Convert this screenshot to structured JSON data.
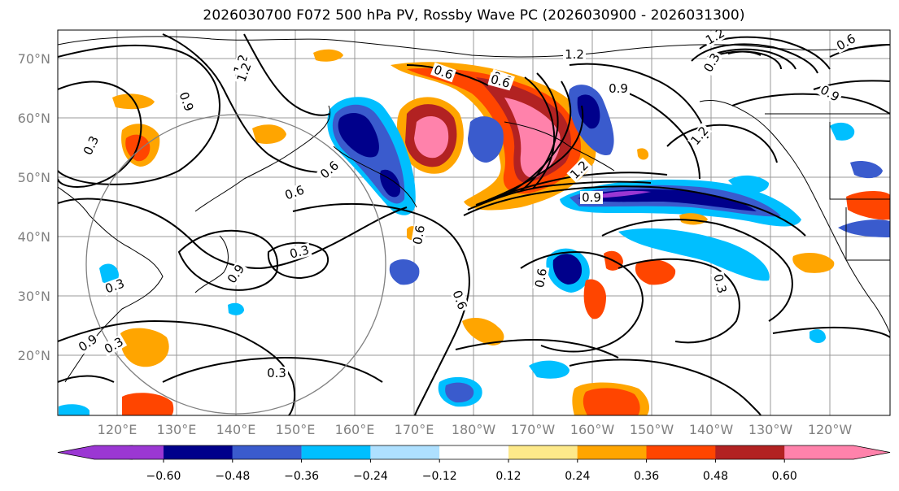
{
  "title": "2026030700 F072 500 hPa PV, Rossby Wave PC (2026030900 - 2026031300)",
  "map": {
    "lat_ticks": [
      "70°N",
      "60°N",
      "50°N",
      "40°N",
      "30°N",
      "20°N"
    ],
    "lon_ticks": [
      "120°E",
      "130°E",
      "140°E",
      "150°E",
      "160°E",
      "170°E",
      "180°W",
      "170°W",
      "160°W",
      "150°W",
      "140°W",
      "130°W",
      "120°W"
    ],
    "contour_labels": [
      "1.2",
      "0.9",
      "0.3",
      "0.6",
      "0.3",
      "0.3",
      "0.3",
      "0.3",
      "0.9",
      "0.6",
      "1.2",
      "0.9",
      "0.6",
      "0.6",
      "0.3",
      "0.6",
      "0.9",
      "1.2",
      "1.2",
      "0.6",
      "0.9",
      "0.6",
      "1.2",
      "0.9",
      "1.2",
      "0.6",
      "0.6",
      "0.3"
    ]
  },
  "colorbar": {
    "tick_labels": [
      "−0.60",
      "−0.48",
      "−0.36",
      "−0.24",
      "−0.12",
      "0.12",
      "0.24",
      "0.36",
      "0.48",
      "0.60"
    ],
    "colors": [
      "#9b37d3",
      "#00008b",
      "#3a5bcd",
      "#00bfff",
      "#aee0ff",
      "#ffffff",
      "#fde98a",
      "#ffa500",
      "#ff4500",
      "#b22222",
      "#ff82ab"
    ]
  }
}
